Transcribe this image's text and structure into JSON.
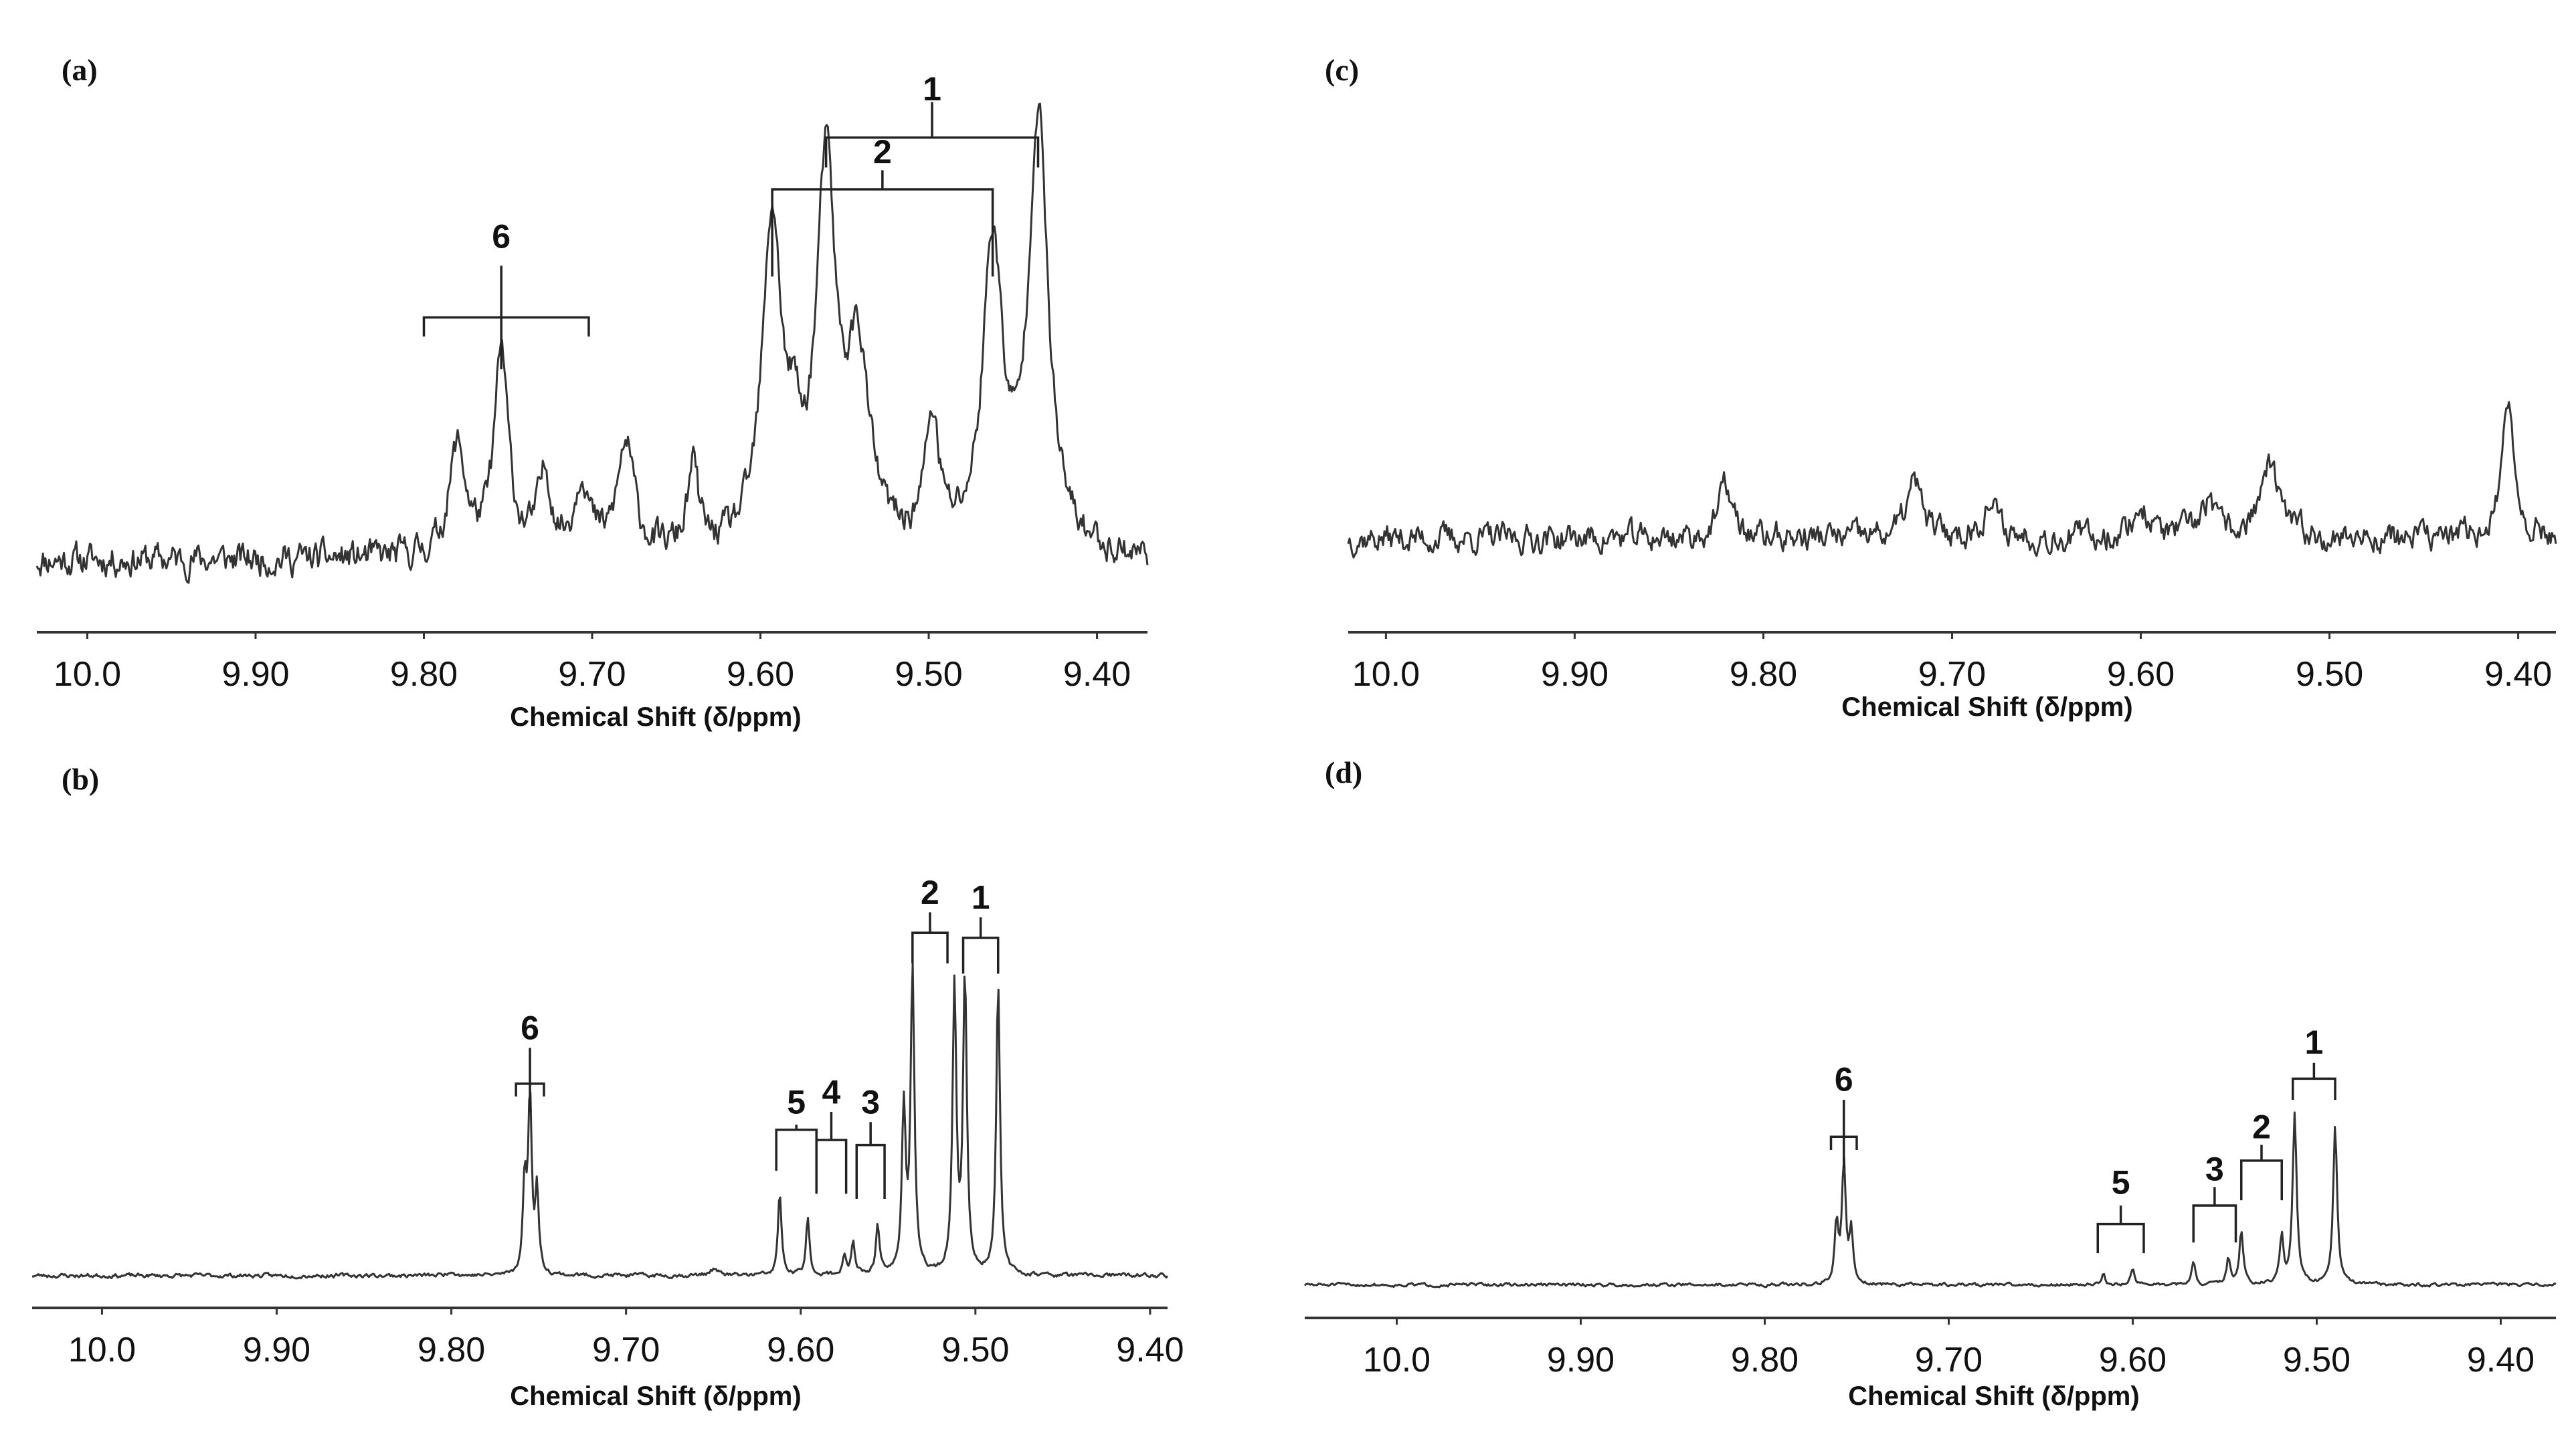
{
  "chart_data": [
    {
      "panel": "(a)",
      "type": "line",
      "xlabel": "Chemical Shift (δ/ppm)",
      "xlim": [
        10.03,
        9.37
      ],
      "x_reversed": true,
      "ticks": [
        "10.0",
        "9.90",
        "9.80",
        "9.70",
        "9.60",
        "9.50",
        "9.40"
      ],
      "tick_values": [
        10.0,
        9.9,
        9.8,
        9.7,
        9.6,
        9.5,
        9.4
      ],
      "ylim": [
        0,
        1
      ],
      "baseline": 0.12,
      "noise": 0.035,
      "noise_seed": 11,
      "peaks": [
        {
          "x": 9.78,
          "h": 0.2,
          "w": 0.006
        },
        {
          "x": 9.754,
          "h": 0.37,
          "w": 0.005
        },
        {
          "x": 9.728,
          "h": 0.14,
          "w": 0.005
        },
        {
          "x": 9.706,
          "h": 0.14,
          "w": 0.005
        },
        {
          "x": 9.68,
          "h": 0.2,
          "w": 0.006
        },
        {
          "x": 9.64,
          "h": 0.15,
          "w": 0.004
        },
        {
          "x": 9.593,
          "h": 0.6,
          "w": 0.007
        },
        {
          "x": 9.58,
          "h": 0.12,
          "w": 0.004
        },
        {
          "x": 9.561,
          "h": 0.68,
          "w": 0.007
        },
        {
          "x": 9.542,
          "h": 0.34,
          "w": 0.008
        },
        {
          "x": 9.498,
          "h": 0.23,
          "w": 0.005
        },
        {
          "x": 9.462,
          "h": 0.56,
          "w": 0.007
        },
        {
          "x": 9.435,
          "h": 0.8,
          "w": 0.007
        }
      ],
      "brackets": [
        {
          "label": "1",
          "left": 9.561,
          "right": 9.435,
          "drop_level": 0.84,
          "top_level": 0.895,
          "stem_to": 0.96,
          "label_level": 0.985
        },
        {
          "label": "2",
          "left": 9.593,
          "right": 9.462,
          "drop_level": 0.64,
          "top_level": 0.8,
          "stem_to": 0.835,
          "label_level": 0.87
        },
        {
          "label": "6",
          "left": 9.8,
          "right": 9.702,
          "drop_level": 0.53,
          "top_level": 0.565,
          "stem_to": 0.66,
          "label_level": 0.715,
          "center": 9.754,
          "center_to": 0.47
        }
      ]
    },
    {
      "panel": "(b)",
      "type": "line",
      "xlabel": "Chemical Shift (δ/ppm)",
      "xlim": [
        10.04,
        9.39
      ],
      "x_reversed": true,
      "ticks": [
        "10.0",
        "9.90",
        "9.80",
        "9.70",
        "9.60",
        "9.50",
        "9.40"
      ],
      "tick_values": [
        10.0,
        9.9,
        9.8,
        9.7,
        9.6,
        9.5,
        9.4
      ],
      "ylim": [
        0,
        1
      ],
      "baseline": 0.05,
      "noise": 0.005,
      "noise_seed": 23,
      "peaks": [
        {
          "x": 9.758,
          "h": 0.18,
          "w": 0.0012
        },
        {
          "x": 9.755,
          "h": 0.34,
          "w": 0.0012
        },
        {
          "x": 9.751,
          "h": 0.16,
          "w": 0.0012
        },
        {
          "x": 9.612,
          "h": 0.16,
          "w": 0.0012
        },
        {
          "x": 9.596,
          "h": 0.11,
          "w": 0.0012
        },
        {
          "x": 9.575,
          "h": 0.04,
          "w": 0.0012
        },
        {
          "x": 9.57,
          "h": 0.06,
          "w": 0.0012
        },
        {
          "x": 9.556,
          "h": 0.1,
          "w": 0.0012
        },
        {
          "x": 9.541,
          "h": 0.32,
          "w": 0.0013
        },
        {
          "x": 9.536,
          "h": 0.59,
          "w": 0.0013
        },
        {
          "x": 9.512,
          "h": 0.56,
          "w": 0.0013
        },
        {
          "x": 9.506,
          "h": 0.58,
          "w": 0.0013
        },
        {
          "x": 9.487,
          "h": 0.57,
          "w": 0.0013
        },
        {
          "x": 9.8,
          "h": 0.01,
          "w": 0.002
        },
        {
          "x": 9.65,
          "h": 0.012,
          "w": 0.003
        }
      ],
      "brackets": [
        {
          "label": "1",
          "left": 9.507,
          "right": 9.487,
          "drop_level": 0.64,
          "top_level": 0.71,
          "stem_to": 0.75,
          "label_level": 0.79
        },
        {
          "label": "2",
          "left": 9.536,
          "right": 9.516,
          "drop_level": 0.66,
          "top_level": 0.72,
          "stem_to": 0.76,
          "label_level": 0.8
        },
        {
          "label": "3",
          "left": 9.568,
          "right": 9.552,
          "drop_level": 0.2,
          "top_level": 0.305,
          "stem_to": 0.35,
          "label_level": 0.39
        },
        {
          "label": "4",
          "left": 9.591,
          "right": 9.574,
          "drop_level": 0.21,
          "top_level": 0.315,
          "stem_to": 0.37,
          "label_level": 0.41
        },
        {
          "label": "5",
          "left": 9.614,
          "right": 9.591,
          "drop_level": 0.255,
          "top_level": 0.335,
          "stem_to": 0.345,
          "label_level": 0.39
        },
        {
          "label": "6",
          "left": 9.763,
          "right": 9.747,
          "drop_level": 0.4,
          "top_level": 0.425,
          "stem_to": 0.495,
          "label_level": 0.535,
          "center": 9.755,
          "center_to": 0.37
        }
      ]
    },
    {
      "panel": "(c)",
      "type": "line",
      "xlabel": "Chemical Shift (δ/ppm)",
      "xlim": [
        10.02,
        9.38
      ],
      "x_reversed": true,
      "ticks": [
        "10.0",
        "9.90",
        "9.80",
        "9.70",
        "9.60",
        "9.50",
        "9.40"
      ],
      "tick_values": [
        10.0,
        9.9,
        9.8,
        9.7,
        9.6,
        9.5,
        9.4
      ],
      "ylim": [
        0,
        1
      ],
      "baseline": 0.16,
      "noise": 0.032,
      "noise_seed": 37,
      "peaks": [
        {
          "x": 9.82,
          "h": 0.1,
          "w": 0.004
        },
        {
          "x": 9.72,
          "h": 0.1,
          "w": 0.005
        },
        {
          "x": 9.68,
          "h": 0.06,
          "w": 0.005
        },
        {
          "x": 9.6,
          "h": 0.05,
          "w": 0.006
        },
        {
          "x": 9.565,
          "h": 0.06,
          "w": 0.005
        },
        {
          "x": 9.532,
          "h": 0.13,
          "w": 0.006
        },
        {
          "x": 9.405,
          "h": 0.24,
          "w": 0.004
        }
      ],
      "brackets": []
    },
    {
      "panel": "(d)",
      "type": "line",
      "xlabel": "Chemical Shift (δ/ppm)",
      "xlim": [
        10.05,
        9.37
      ],
      "x_reversed": true,
      "ticks": [
        "10.0",
        "9.90",
        "9.80",
        "9.70",
        "9.60",
        "9.50",
        "9.40"
      ],
      "tick_values": [
        10.0,
        9.9,
        9.8,
        9.7,
        9.6,
        9.5,
        9.4
      ],
      "ylim": [
        0,
        1
      ],
      "baseline": 0.05,
      "noise": 0.004,
      "noise_seed": 51,
      "peaks": [
        {
          "x": 9.761,
          "h": 0.11,
          "w": 0.0012
        },
        {
          "x": 9.757,
          "h": 0.23,
          "w": 0.0012
        },
        {
          "x": 9.753,
          "h": 0.1,
          "w": 0.0012
        },
        {
          "x": 9.616,
          "h": 0.02,
          "w": 0.0012
        },
        {
          "x": 9.6,
          "h": 0.03,
          "w": 0.0013
        },
        {
          "x": 9.567,
          "h": 0.04,
          "w": 0.0012
        },
        {
          "x": 9.548,
          "h": 0.05,
          "w": 0.0012
        },
        {
          "x": 9.541,
          "h": 0.1,
          "w": 0.0012
        },
        {
          "x": 9.519,
          "h": 0.09,
          "w": 0.0012
        },
        {
          "x": 9.512,
          "h": 0.32,
          "w": 0.0013
        },
        {
          "x": 9.49,
          "h": 0.3,
          "w": 0.0013
        }
      ],
      "brackets": [
        {
          "label": "1",
          "left": 9.513,
          "right": 9.49,
          "drop_level": 0.4,
          "top_level": 0.44,
          "stem_to": 0.47,
          "label_level": 0.51
        },
        {
          "label": "2",
          "left": 9.541,
          "right": 9.519,
          "drop_level": 0.21,
          "top_level": 0.285,
          "stem_to": 0.315,
          "label_level": 0.35
        },
        {
          "label": "3",
          "left": 9.567,
          "right": 9.544,
          "drop_level": 0.13,
          "top_level": 0.2,
          "stem_to": 0.235,
          "label_level": 0.27
        },
        {
          "label": "5",
          "left": 9.619,
          "right": 9.594,
          "drop_level": 0.11,
          "top_level": 0.165,
          "stem_to": 0.2,
          "label_level": 0.245
        },
        {
          "label": "6",
          "left": 9.764,
          "right": 9.75,
          "drop_level": 0.305,
          "top_level": 0.33,
          "stem_to": 0.4,
          "label_level": 0.44,
          "center": 9.757,
          "center_to": 0.27
        }
      ]
    }
  ]
}
